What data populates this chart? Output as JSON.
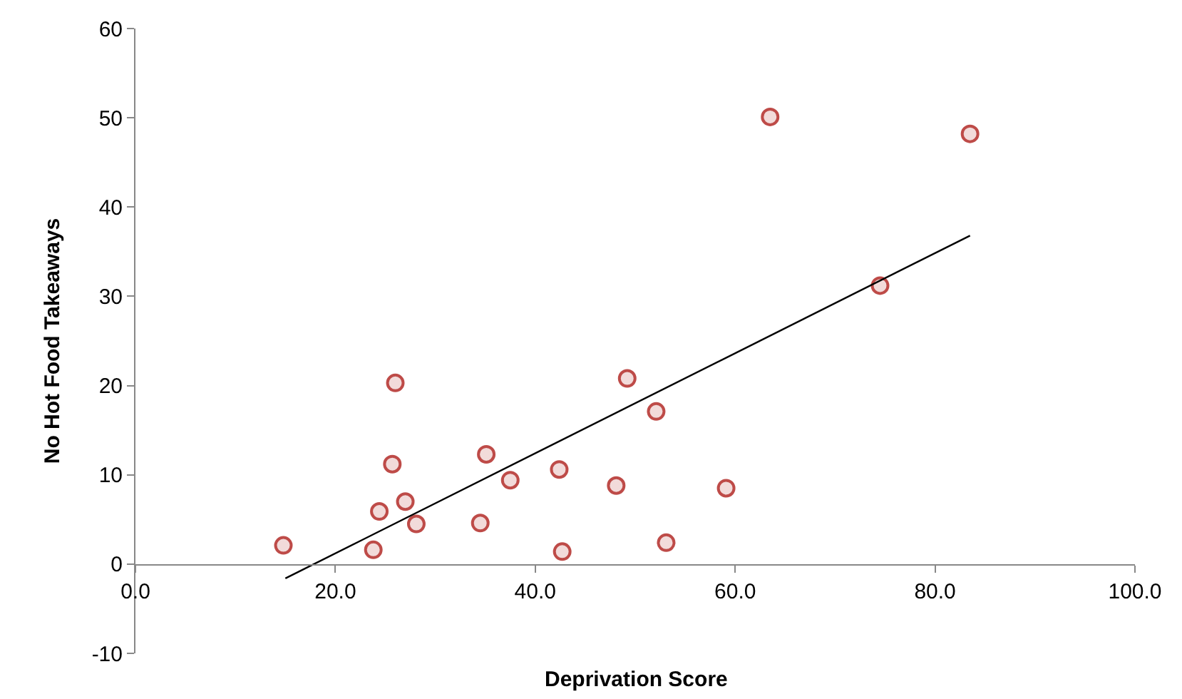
{
  "chart_data": {
    "type": "scatter",
    "xlabel": "Deprivation Score",
    "ylabel": "No Hot Food Takeaways",
    "xlim": [
      0,
      100
    ],
    "ylim": [
      -10,
      60
    ],
    "xticks": [
      {
        "value": 0,
        "label": "0.0"
      },
      {
        "value": 20,
        "label": "20.0"
      },
      {
        "value": 40,
        "label": "40.0"
      },
      {
        "value": 60,
        "label": "60.0"
      },
      {
        "value": 80,
        "label": "80.0"
      },
      {
        "value": 100,
        "label": "100.0"
      }
    ],
    "yticks": [
      -10,
      0,
      10,
      20,
      30,
      40,
      50,
      60
    ],
    "marker": "circle",
    "series": [
      {
        "color": "#be4b48",
        "x": [
          14.8,
          23.8,
          24.4,
          25.7,
          26.0,
          27.0,
          28.1,
          34.5,
          35.1,
          37.5,
          42.4,
          42.7,
          48.1,
          49.2,
          52.1,
          53.1,
          59.1,
          63.5,
          74.5,
          83.5
        ],
        "values": [
          2.1,
          1.6,
          5.9,
          11.2,
          20.3,
          7.0,
          4.5,
          4.6,
          12.3,
          9.4,
          10.6,
          1.4,
          8.8,
          20.8,
          17.1,
          2.4,
          8.5,
          50.1,
          31.2,
          48.2
        ]
      },
      {
        "type": "line",
        "color": "#000000",
        "marker": "none",
        "line_style": "solid",
        "x": [
          15.0,
          83.5
        ],
        "values": [
          -1.6,
          36.8
        ]
      }
    ]
  }
}
